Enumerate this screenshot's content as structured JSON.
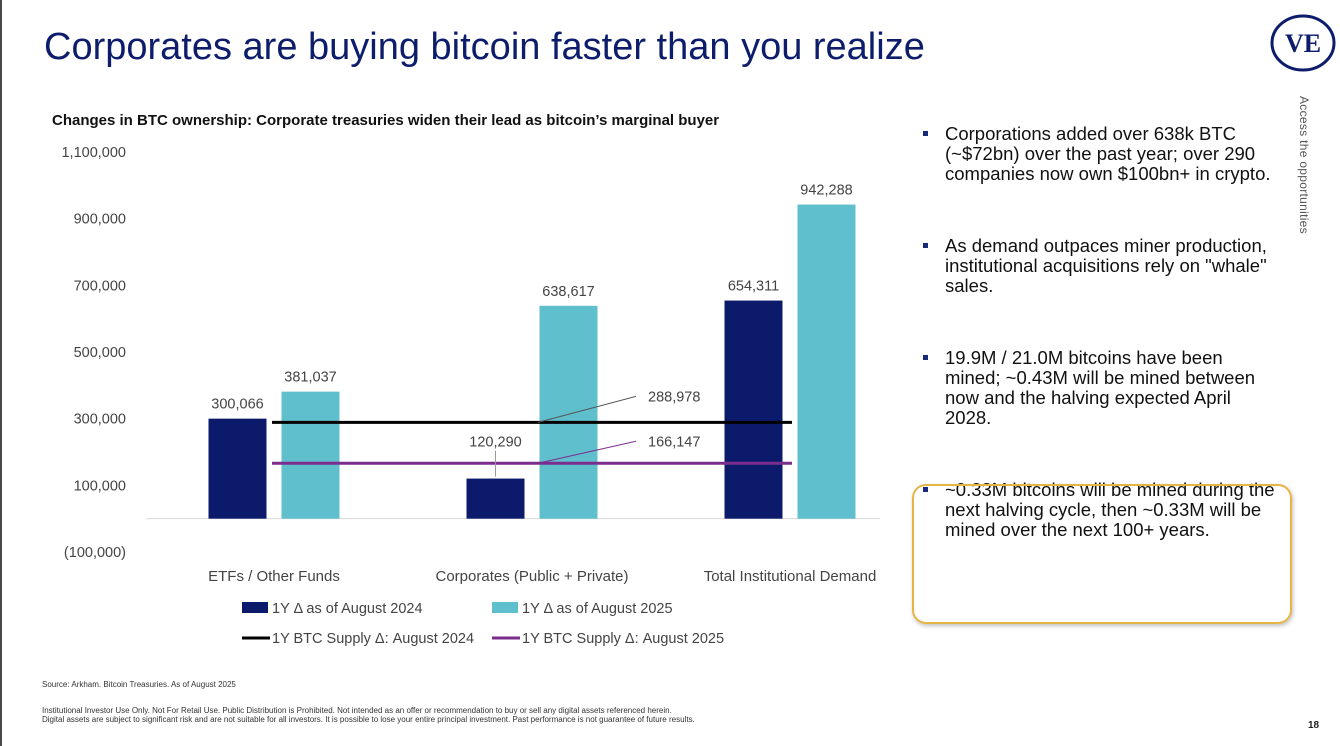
{
  "slide": {
    "title": "Corporates are buying bitcoin faster than you realize",
    "logo_text": "VE",
    "side_tab": "Access the opportunities",
    "page_number": "18"
  },
  "bullets": [
    "Corporations added over 638k BTC (~$72bn) over the past year; over 290 companies now own $100bn+ in crypto.",
    "As demand outpaces miner production, institutional acquisitions rely on \"whale\" sales.",
    "19.9M / 21.0M bitcoins have been mined; ~0.43M will be mined between now and the halving expected April 2028.",
    "~0.33M bitcoins will be mined during the next halving cycle, then ~0.33M will be mined over the next 100+ years."
  ],
  "footer": {
    "source": "Source: Arkham. Bitcoin Treasuries. As of August 2025",
    "disclaimer_line1": "Institutional Investor Use Only. Not For Retail Use. Public Distribution is Prohibited. Not intended as an offer or recommendation to buy or sell any digital assets referenced herein.",
    "disclaimer_line2": "Digital assets are subject to significant risk and are not suitable for all investors. It is possible to lose your entire principal investment. Past performance is not guarantee of future results."
  },
  "colors": {
    "title": "#0d1d6b",
    "series_2024": "#0b1a6b",
    "series_2025": "#5fbfcc",
    "supply_2024": "#000000",
    "supply_2025": "#7b2d8e",
    "callout_border": "#e6b547"
  },
  "chart_data": {
    "type": "bar",
    "title": "Changes in BTC ownership: Corporate treasuries widen their lead as bitcoin’s marginal buyer",
    "categories": [
      "ETFs / Other Funds",
      "Corporates (Public + Private)",
      "Total Institutional Demand"
    ],
    "series": [
      {
        "name": "1Y Δ as of August 2024",
        "values": [
          300066,
          120290,
          654311
        ],
        "labels": [
          "300,066",
          "120,290",
          "654,311"
        ]
      },
      {
        "name": "1Y Δ as of August 2025",
        "values": [
          381037,
          638617,
          942288
        ],
        "labels": [
          "381,037",
          "638,617",
          "942,288"
        ]
      }
    ],
    "reference_lines": [
      {
        "name": "1Y BTC Supply Δ: August 2024",
        "value": 288978,
        "label": "288,978"
      },
      {
        "name": "1Y BTC Supply Δ: August 2025",
        "value": 166147,
        "label": "166,147"
      }
    ],
    "ylim": [
      -100000,
      1100000
    ],
    "y_ticks": [
      -100000,
      100000,
      300000,
      500000,
      700000,
      900000,
      1100000
    ],
    "y_tick_labels": [
      "(100,000)",
      "100,000",
      "300,000",
      "500,000",
      "700,000",
      "900,000",
      "1,100,000"
    ],
    "grid": false,
    "legend_position": "bottom"
  }
}
